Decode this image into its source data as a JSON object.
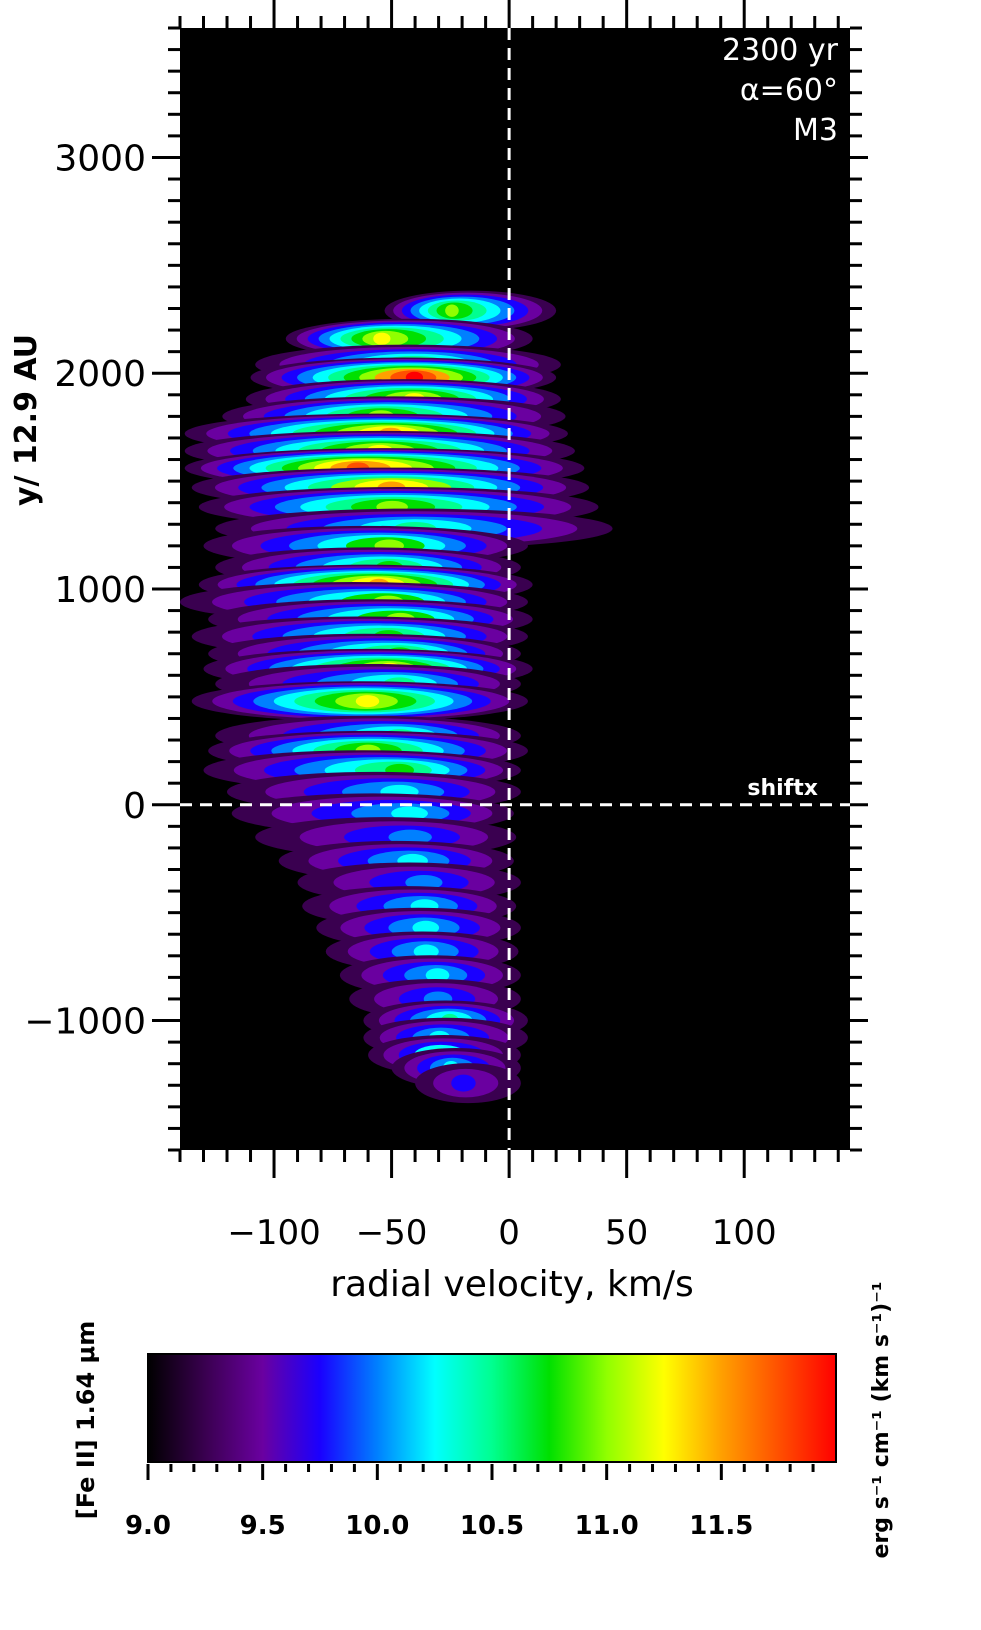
{
  "chart_data": {
    "type": "heatmap",
    "xlabel": "radial velocity, km/s",
    "ylabel": "y/ 12.9 AU",
    "xlim": [
      -140,
      145
    ],
    "ylim": [
      -1600,
      3600
    ],
    "xticks": [
      -100,
      -50,
      0,
      50,
      100
    ],
    "xtick_labels": [
      "−100",
      "−50",
      "0",
      "50",
      "100"
    ],
    "yticks": [
      3000,
      2000,
      1000,
      0,
      -1000
    ],
    "ytick_labels": [
      "3000",
      "2000",
      "1000",
      "0",
      "−1000"
    ],
    "reference_lines": [
      {
        "axis": "x",
        "value": 0,
        "style": "dashed",
        "color": "#ffffff"
      },
      {
        "axis": "y",
        "value": 0,
        "style": "dashed",
        "color": "#ffffff",
        "label": "shiftx"
      }
    ],
    "annotations": [
      "2300 yr",
      "α=60°",
      "M3"
    ],
    "emission_bands": [
      {
        "y": 2290,
        "vmin": -53,
        "vmax": 20,
        "peak": 11.0,
        "vpeak": -25
      },
      {
        "y": 2160,
        "vmin": -95,
        "vmax": 10,
        "peak": 11.3,
        "vpeak": -55
      },
      {
        "y": 2040,
        "vmin": -108,
        "vmax": 22,
        "peak": 10.8,
        "vpeak": -40
      },
      {
        "y": 1980,
        "vmin": -110,
        "vmax": 20,
        "peak": 11.9,
        "vpeak": -40
      },
      {
        "y": 1880,
        "vmin": -112,
        "vmax": 22,
        "peak": 11.3,
        "vpeak": -40
      },
      {
        "y": 1800,
        "vmin": -122,
        "vmax": 24,
        "peak": 11.1,
        "vpeak": -55
      },
      {
        "y": 1720,
        "vmin": -138,
        "vmax": 25,
        "peak": 11.6,
        "vpeak": -50
      },
      {
        "y": 1640,
        "vmin": -138,
        "vmax": 28,
        "peak": 11.2,
        "vpeak": -55
      },
      {
        "y": 1560,
        "vmin": -138,
        "vmax": 32,
        "peak": 11.8,
        "vpeak": -65
      },
      {
        "y": 1470,
        "vmin": -135,
        "vmax": 34,
        "peak": 11.4,
        "vpeak": -50
      },
      {
        "y": 1380,
        "vmin": -132,
        "vmax": 38,
        "peak": 11.0,
        "vpeak": -50
      },
      {
        "y": 1280,
        "vmin": -125,
        "vmax": 44,
        "peak": 10.6,
        "vpeak": -40
      },
      {
        "y": 1200,
        "vmin": -130,
        "vmax": 8,
        "peak": 10.9,
        "vpeak": -50
      },
      {
        "y": 1100,
        "vmin": -125,
        "vmax": 5,
        "peak": 10.7,
        "vpeak": -50
      },
      {
        "y": 1020,
        "vmin": -132,
        "vmax": 10,
        "peak": 11.5,
        "vpeak": -55
      },
      {
        "y": 940,
        "vmin": -140,
        "vmax": 8,
        "peak": 10.9,
        "vpeak": -50
      },
      {
        "y": 860,
        "vmin": -128,
        "vmax": 10,
        "peak": 10.9,
        "vpeak": -45
      },
      {
        "y": 780,
        "vmin": -135,
        "vmax": 8,
        "peak": 10.8,
        "vpeak": -50
      },
      {
        "y": 700,
        "vmin": -128,
        "vmax": 5,
        "peak": 10.7,
        "vpeak": -45
      },
      {
        "y": 630,
        "vmin": -130,
        "vmax": 10,
        "peak": 11.2,
        "vpeak": -50
      },
      {
        "y": 560,
        "vmin": -125,
        "vmax": 5,
        "peak": 10.6,
        "vpeak": -45
      },
      {
        "y": 480,
        "vmin": -135,
        "vmax": 8,
        "peak": 11.3,
        "vpeak": -60
      },
      {
        "y": 320,
        "vmin": -125,
        "vmax": 5,
        "peak": 10.5,
        "vpeak": -45
      },
      {
        "y": 250,
        "vmin": -128,
        "vmax": 8,
        "peak": 11.1,
        "vpeak": -60
      },
      {
        "y": 160,
        "vmin": -130,
        "vmax": 5,
        "peak": 10.7,
        "vpeak": -45
      },
      {
        "y": 60,
        "vmin": -120,
        "vmax": 5,
        "peak": 10.3,
        "vpeak": -45
      },
      {
        "y": -40,
        "vmin": -118,
        "vmax": 2,
        "peak": 10.2,
        "vpeak": -40
      },
      {
        "y": -150,
        "vmin": -108,
        "vmax": 3,
        "peak": 10.1,
        "vpeak": -40
      },
      {
        "y": -260,
        "vmin": -98,
        "vmax": 2,
        "peak": 10.2,
        "vpeak": -40
      },
      {
        "y": -360,
        "vmin": -90,
        "vmax": 5,
        "peak": 10.1,
        "vpeak": -35
      },
      {
        "y": -470,
        "vmin": -88,
        "vmax": 3,
        "peak": 10.3,
        "vpeak": -35
      },
      {
        "y": -570,
        "vmin": -82,
        "vmax": 5,
        "peak": 10.2,
        "vpeak": -35
      },
      {
        "y": -680,
        "vmin": -78,
        "vmax": 4,
        "peak": 10.3,
        "vpeak": -35
      },
      {
        "y": -790,
        "vmin": -72,
        "vmax": 5,
        "peak": 10.2,
        "vpeak": -30
      },
      {
        "y": -900,
        "vmin": -68,
        "vmax": 5,
        "peak": 10.0,
        "vpeak": -30
      },
      {
        "y": -1000,
        "vmin": -62,
        "vmax": 8,
        "peak": 10.6,
        "vpeak": -25
      },
      {
        "y": -1080,
        "vmin": -62,
        "vmax": 8,
        "peak": 10.3,
        "vpeak": -30
      },
      {
        "y": -1160,
        "vmin": -60,
        "vmax": 5,
        "peak": 10.4,
        "vpeak": -30
      },
      {
        "y": -1220,
        "vmin": -50,
        "vmax": 5,
        "peak": 10.2,
        "vpeak": -25
      },
      {
        "y": -1290,
        "vmin": -40,
        "vmax": 5,
        "peak": 9.8,
        "vpeak": -20
      }
    ],
    "colorbar": {
      "label": "[Fe II] 1.64 μm",
      "units": "erg s⁻¹ cm⁻¹ (km s⁻¹)⁻¹",
      "range": [
        9.0,
        12.0
      ],
      "ticks": [
        9.0,
        9.5,
        10.0,
        10.5,
        11.0,
        11.5
      ],
      "tick_labels": [
        "9.0",
        "9.5",
        "10.0",
        "10.5",
        "11.0",
        "11.5"
      ],
      "colormap": [
        "#000000",
        "#3a0050",
        "#6a00a0",
        "#1a00ff",
        "#0080ff",
        "#00ffff",
        "#00ff90",
        "#00e000",
        "#90ff00",
        "#ffff00",
        "#ffa000",
        "#ff5000",
        "#ff0000"
      ]
    }
  }
}
